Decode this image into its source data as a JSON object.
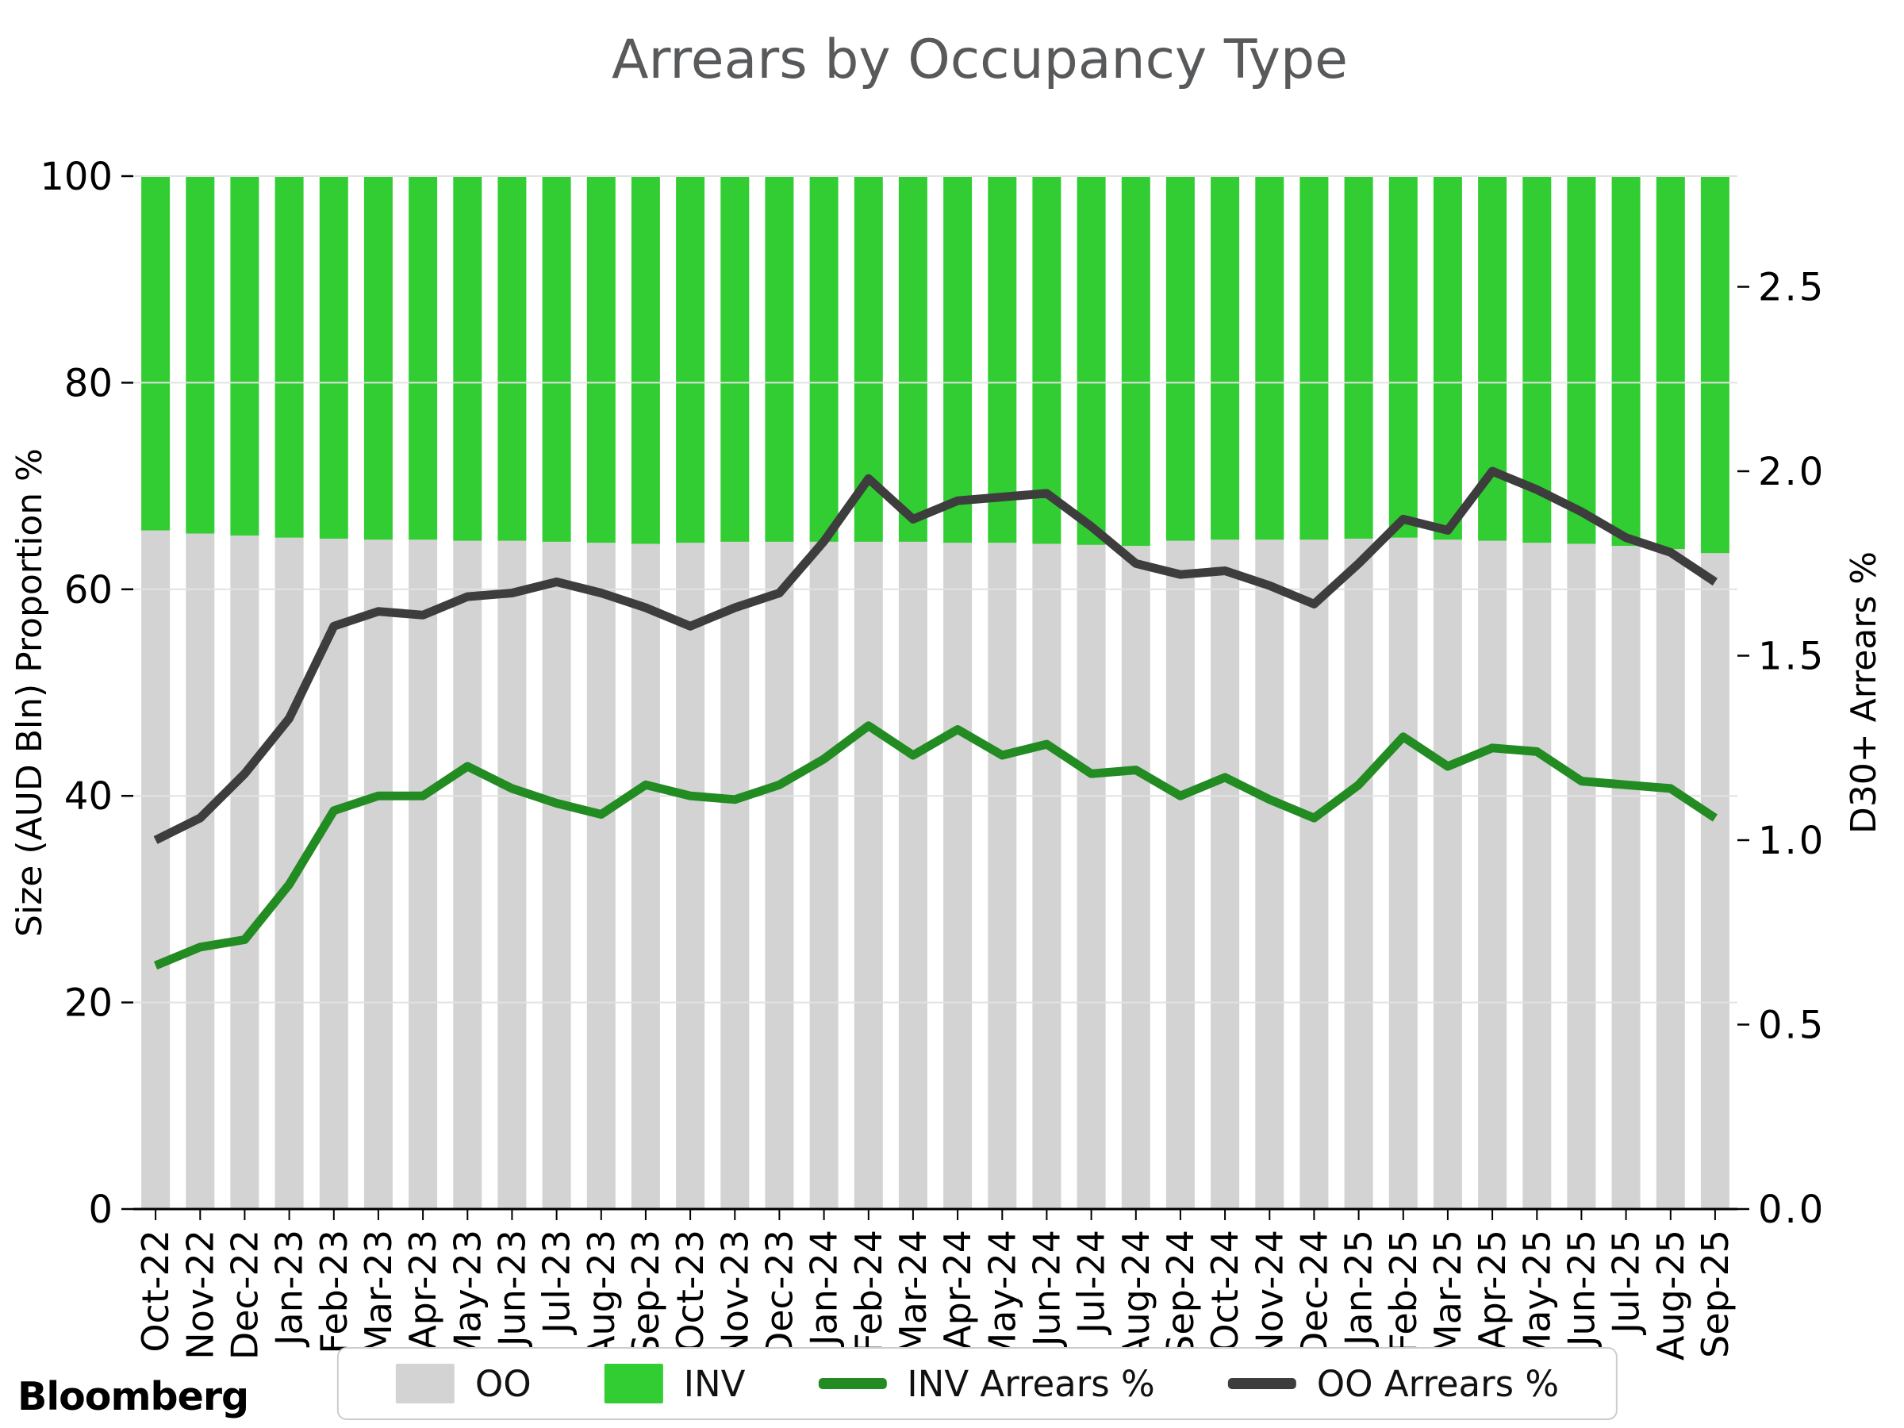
{
  "title": "Arrears by Occupancy Type",
  "branding": {
    "logo": "Bloomberg"
  },
  "axes": {
    "left": {
      "label": "Size (AUD Bln) Proportion %",
      "ticks": [
        "0",
        "20",
        "40",
        "60",
        "80",
        "100"
      ],
      "range": [
        0,
        100
      ]
    },
    "right": {
      "label": "D30+ Arrears %",
      "ticks": [
        "0.0",
        "0.5",
        "1.0",
        "1.5",
        "2.0",
        "2.5"
      ],
      "range": [
        0,
        2.8
      ]
    }
  },
  "legend": {
    "items": [
      {
        "label": "OO",
        "type": "patch",
        "color": "#d3d3d3"
      },
      {
        "label": "INV",
        "type": "patch",
        "color": "#32cd32"
      },
      {
        "label": "INV Arrears %",
        "type": "line",
        "color": "#228b22"
      },
      {
        "label": "OO Arrears %",
        "type": "line",
        "color": "#3d3d3d"
      }
    ]
  },
  "colors": {
    "oo_bar": "#d3d3d3",
    "inv_bar": "#32cd32",
    "inv_line": "#228b22",
    "oo_line": "#3d3d3d",
    "title": "#58595b",
    "gridline": "#e2e2e2",
    "axis": "#000000"
  },
  "chart_data": {
    "type": "combo-stacked-bar-line",
    "title": "Arrears by Occupancy Type",
    "categories": [
      "Oct-22",
      "Nov-22",
      "Dec-22",
      "Jan-23",
      "Feb-23",
      "Mar-23",
      "Apr-23",
      "May-23",
      "Jun-23",
      "Jul-23",
      "Aug-23",
      "Sep-23",
      "Oct-23",
      "Nov-23",
      "Dec-23",
      "Jan-24",
      "Feb-24",
      "Mar-24",
      "Apr-24",
      "May-24",
      "Jun-24",
      "Jul-24",
      "Aug-24",
      "Sep-24",
      "Oct-24",
      "Nov-24",
      "Dec-24",
      "Jan-25",
      "Feb-25",
      "Mar-25",
      "Apr-25",
      "May-25",
      "Jun-25",
      "Jul-25",
      "Aug-25",
      "Sep-25"
    ],
    "series": [
      {
        "name": "OO",
        "type": "bar",
        "axis": "left",
        "color": "#d3d3d3",
        "values": [
          65.7,
          65.4,
          65.2,
          65.0,
          64.9,
          64.8,
          64.8,
          64.7,
          64.7,
          64.6,
          64.5,
          64.4,
          64.5,
          64.6,
          64.6,
          64.6,
          64.6,
          64.6,
          64.5,
          64.5,
          64.4,
          64.3,
          64.2,
          64.7,
          64.8,
          64.8,
          64.8,
          64.9,
          65.0,
          64.8,
          64.7,
          64.5,
          64.4,
          64.2,
          63.9,
          63.5
        ]
      },
      {
        "name": "INV",
        "type": "bar",
        "axis": "left",
        "color": "#32cd32",
        "values": [
          34.3,
          34.6,
          34.8,
          35.0,
          35.1,
          35.2,
          35.2,
          35.3,
          35.3,
          35.4,
          35.5,
          35.6,
          35.5,
          35.4,
          35.4,
          35.4,
          35.4,
          35.4,
          35.5,
          35.5,
          35.6,
          35.7,
          35.8,
          35.3,
          35.2,
          35.2,
          35.2,
          35.1,
          35.0,
          35.2,
          35.3,
          35.5,
          35.6,
          35.8,
          36.1,
          36.5
        ]
      },
      {
        "name": "INV Arrears %",
        "type": "line",
        "axis": "right",
        "color": "#228b22",
        "values": [
          0.66,
          0.71,
          0.73,
          0.88,
          1.08,
          1.12,
          1.12,
          1.2,
          1.14,
          1.1,
          1.07,
          1.15,
          1.12,
          1.11,
          1.15,
          1.22,
          1.31,
          1.23,
          1.3,
          1.23,
          1.26,
          1.18,
          1.19,
          1.12,
          1.17,
          1.11,
          1.06,
          1.15,
          1.28,
          1.2,
          1.25,
          1.24,
          1.16,
          1.15,
          1.14,
          1.06
        ]
      },
      {
        "name": "OO Arrears %",
        "type": "line",
        "axis": "right",
        "color": "#3d3d3d",
        "values": [
          1.0,
          1.06,
          1.18,
          1.33,
          1.58,
          1.62,
          1.61,
          1.66,
          1.67,
          1.7,
          1.67,
          1.63,
          1.58,
          1.63,
          1.67,
          1.81,
          1.98,
          1.87,
          1.92,
          1.93,
          1.94,
          1.85,
          1.75,
          1.72,
          1.73,
          1.69,
          1.64,
          1.75,
          1.87,
          1.84,
          2.0,
          1.95,
          1.89,
          1.82,
          1.78,
          1.7
        ]
      }
    ],
    "xlabel": "",
    "ylabel_left": "Size (AUD Bln) Proportion %",
    "ylabel_right": "D30+ Arrears %",
    "ylim_left": [
      0,
      100
    ],
    "ylim_right": [
      0,
      2.8
    ],
    "grid": true,
    "legend_position": "bottom-center",
    "bar_stacked": true
  }
}
